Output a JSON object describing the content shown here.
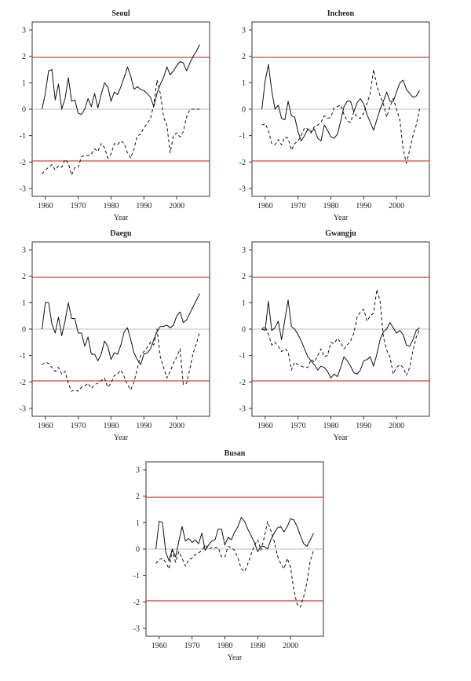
{
  "chart_data": [
    {
      "type": "line",
      "title": "Seoul",
      "xlabel": "Year",
      "ylabel": "",
      "xlim": [
        1956,
        2010
      ],
      "ylim": [
        -3.3,
        3.3
      ],
      "xticks": [
        "1960",
        "1970",
        "1980",
        "1990",
        "2000"
      ],
      "yticks": [
        "-3",
        "-2",
        "-1",
        "0",
        "1",
        "2",
        "3"
      ],
      "reference_lines": [
        1.96,
        -1.96
      ],
      "x": [
        1959,
        1960,
        1961,
        1962,
        1963,
        1964,
        1965,
        1966,
        1967,
        1968,
        1969,
        1970,
        1971,
        1972,
        1973,
        1974,
        1975,
        1976,
        1977,
        1978,
        1979,
        1980,
        1981,
        1982,
        1983,
        1984,
        1985,
        1986,
        1987,
        1988,
        1989,
        1990,
        1991,
        1992,
        1993,
        1994,
        1995,
        1996,
        1997,
        1998,
        1999,
        2000,
        2001,
        2002,
        2003,
        2004,
        2005,
        2006,
        2007
      ],
      "series": [
        {
          "style": "solid",
          "values": [
            0.0,
            0.6,
            1.45,
            1.5,
            0.35,
            0.95,
            0.0,
            0.4,
            1.2,
            0.3,
            0.35,
            -0.15,
            -0.2,
            0.0,
            0.4,
            0.1,
            0.6,
            0.05,
            0.55,
            1.0,
            0.85,
            0.3,
            0.65,
            0.55,
            0.85,
            1.2,
            1.6,
            1.25,
            0.75,
            0.85,
            0.75,
            0.7,
            0.6,
            0.45,
            0.1,
            0.6,
            0.95,
            1.2,
            1.6,
            1.3,
            1.45,
            1.65,
            1.8,
            1.75,
            1.45,
            1.75,
            2.0,
            2.2,
            2.45
          ]
        },
        {
          "style": "dashed",
          "values": [
            -2.45,
            -2.3,
            -2.2,
            -2.1,
            -2.3,
            -2.15,
            -2.2,
            -1.9,
            -2.05,
            -2.5,
            -2.2,
            -2.2,
            -1.8,
            -1.75,
            -1.75,
            -1.7,
            -1.5,
            -1.6,
            -1.3,
            -1.45,
            -1.85,
            -1.7,
            -1.3,
            -1.35,
            -1.2,
            -1.3,
            -1.65,
            -1.85,
            -1.5,
            -1.0,
            -0.95,
            -0.7,
            -0.55,
            -0.35,
            0.15,
            1.1,
            0.6,
            -0.3,
            -0.6,
            -1.65,
            -1.0,
            -0.9,
            -1.05,
            -0.85,
            -0.3,
            0.0,
            0.0,
            0.0,
            0.0
          ]
        }
      ]
    },
    {
      "type": "line",
      "title": "Incheon",
      "xlabel": "Year",
      "ylabel": "",
      "xlim": [
        1956,
        2010
      ],
      "ylim": [
        -3.3,
        3.3
      ],
      "xticks": [
        "1960",
        "1970",
        "1980",
        "1990",
        "2000"
      ],
      "yticks": [
        "-3",
        "-2",
        "-1",
        "0",
        "1",
        "2",
        "3"
      ],
      "reference_lines": [
        1.96,
        -1.96
      ],
      "x": [
        1959,
        1960,
        1961,
        1962,
        1963,
        1964,
        1965,
        1966,
        1967,
        1968,
        1969,
        1970,
        1971,
        1972,
        1973,
        1974,
        1975,
        1976,
        1977,
        1978,
        1979,
        1980,
        1981,
        1982,
        1983,
        1984,
        1985,
        1986,
        1987,
        1988,
        1989,
        1990,
        1991,
        1992,
        1993,
        1994,
        1995,
        1996,
        1997,
        1998,
        1999,
        2000,
        2001,
        2002,
        2003,
        2004,
        2005,
        2006,
        2007
      ],
      "series": [
        {
          "style": "solid",
          "values": [
            0.0,
            1.05,
            1.7,
            0.7,
            0.0,
            0.15,
            -0.35,
            -0.4,
            0.3,
            -0.25,
            -0.3,
            -0.85,
            -1.2,
            -1.0,
            -0.75,
            -0.85,
            -0.75,
            -1.1,
            -1.2,
            -0.6,
            -0.8,
            -1.05,
            -1.1,
            -0.95,
            -0.45,
            0.1,
            0.3,
            0.3,
            -0.1,
            0.25,
            0.4,
            0.2,
            -0.2,
            -0.5,
            -0.8,
            -0.4,
            0.0,
            0.3,
            0.65,
            0.3,
            0.3,
            0.65,
            1.0,
            1.1,
            0.75,
            0.6,
            0.45,
            0.5,
            0.7
          ]
        },
        {
          "style": "dashed",
          "values": [
            -0.6,
            -0.55,
            -0.8,
            -1.3,
            -1.35,
            -1.15,
            -1.35,
            -1.05,
            -1.1,
            -1.55,
            -1.3,
            -1.2,
            -1.0,
            -0.7,
            -0.75,
            -0.9,
            -0.65,
            -0.6,
            -0.5,
            -0.25,
            -0.35,
            -0.3,
            0.05,
            0.1,
            0.15,
            -0.2,
            -0.45,
            -0.5,
            -0.1,
            -0.3,
            -0.35,
            -0.15,
            0.2,
            0.6,
            1.5,
            0.9,
            0.5,
            0.2,
            -0.3,
            0.1,
            0.4,
            0.0,
            -0.4,
            -1.5,
            -2.05,
            -1.55,
            -1.0,
            -0.6,
            0.0
          ]
        }
      ]
    },
    {
      "type": "line",
      "title": "Daegu",
      "xlabel": "Year",
      "ylabel": "",
      "xlim": [
        1956,
        2010
      ],
      "ylim": [
        -3.3,
        3.3
      ],
      "xticks": [
        "1960",
        "1970",
        "1980",
        "1990",
        "2000"
      ],
      "yticks": [
        "-3",
        "-2",
        "-1",
        "0",
        "1",
        "2",
        "3"
      ],
      "reference_lines": [
        1.96,
        -1.96
      ],
      "x": [
        1959,
        1960,
        1961,
        1962,
        1963,
        1964,
        1965,
        1966,
        1967,
        1968,
        1969,
        1970,
        1971,
        1972,
        1973,
        1974,
        1975,
        1976,
        1977,
        1978,
        1979,
        1980,
        1981,
        1982,
        1983,
        1984,
        1985,
        1986,
        1987,
        1988,
        1989,
        1990,
        1991,
        1992,
        1993,
        1994,
        1995,
        1996,
        1997,
        1998,
        1999,
        2000,
        2001,
        2002,
        2003,
        2004,
        2005,
        2006,
        2007
      ],
      "series": [
        {
          "style": "solid",
          "values": [
            0.0,
            1.0,
            1.0,
            0.2,
            -0.15,
            0.45,
            -0.25,
            0.3,
            1.0,
            0.4,
            0.4,
            -0.15,
            -0.15,
            -0.65,
            -0.3,
            -0.95,
            -0.95,
            -1.2,
            -0.95,
            -0.45,
            -0.65,
            -1.15,
            -0.9,
            -0.95,
            -0.6,
            -0.1,
            0.05,
            -0.4,
            -0.9,
            -1.15,
            -1.35,
            -0.95,
            -0.9,
            -0.75,
            -0.4,
            -0.1,
            0.1,
            0.1,
            0.15,
            0.05,
            0.15,
            0.5,
            0.65,
            0.25,
            0.35,
            0.6,
            0.85,
            1.1,
            1.35
          ]
        },
        {
          "style": "dashed",
          "values": [
            -1.35,
            -1.25,
            -1.3,
            -1.45,
            -1.6,
            -1.45,
            -1.7,
            -1.6,
            -2.05,
            -2.35,
            -2.3,
            -2.35,
            -2.2,
            -2.15,
            -2.05,
            -2.25,
            -2.1,
            -2.05,
            -1.95,
            -1.85,
            -2.2,
            -2.05,
            -1.75,
            -1.7,
            -1.55,
            -1.8,
            -2.1,
            -2.3,
            -2.0,
            -1.5,
            -1.0,
            -0.85,
            -0.7,
            -0.5,
            -0.6,
            0.0,
            -1.05,
            -1.45,
            -1.85,
            -1.6,
            -1.3,
            -1.05,
            -0.75,
            -2.1,
            -2.05,
            -1.5,
            -0.9,
            -0.55,
            -0.1
          ]
        }
      ]
    },
    {
      "type": "line",
      "title": "Gwangju",
      "xlabel": "Year",
      "ylabel": "",
      "xlim": [
        1956,
        2010
      ],
      "ylim": [
        -3.3,
        3.3
      ],
      "xticks": [
        "1960",
        "1970",
        "1980",
        "1990",
        "2000"
      ],
      "yticks": [
        "-3",
        "-2",
        "-1",
        "0",
        "1",
        "2",
        "3"
      ],
      "reference_lines": [
        1.96,
        -1.96
      ],
      "x": [
        1959,
        1960,
        1961,
        1962,
        1963,
        1964,
        1965,
        1966,
        1967,
        1968,
        1969,
        1970,
        1971,
        1972,
        1973,
        1974,
        1975,
        1976,
        1977,
        1978,
        1979,
        1980,
        1981,
        1982,
        1983,
        1984,
        1985,
        1986,
        1987,
        1988,
        1989,
        1990,
        1991,
        1992,
        1993,
        1994,
        1995,
        1996,
        1997,
        1998,
        1999,
        2000,
        2001,
        2002,
        2003,
        2004,
        2005,
        2006,
        2007
      ],
      "series": [
        {
          "style": "solid",
          "values": [
            0.0,
            -0.05,
            1.05,
            -0.05,
            0.05,
            0.3,
            -0.4,
            0.35,
            1.1,
            0.1,
            0.0,
            -0.2,
            -0.45,
            -0.75,
            -1.05,
            -1.2,
            -1.35,
            -1.55,
            -1.4,
            -1.45,
            -1.6,
            -1.85,
            -1.7,
            -1.8,
            -1.45,
            -1.05,
            -1.2,
            -1.4,
            -1.65,
            -1.7,
            -1.55,
            -1.2,
            -1.15,
            -1.05,
            -1.4,
            -0.95,
            -0.4,
            -0.1,
            0.0,
            0.25,
            0.05,
            -0.15,
            -0.05,
            -0.2,
            -0.6,
            -0.65,
            -0.4,
            -0.05,
            0.05
          ]
        },
        {
          "style": "dashed",
          "values": [
            0.0,
            0.1,
            -0.2,
            -0.6,
            -0.5,
            -0.65,
            -0.85,
            -0.75,
            -0.85,
            -1.55,
            -1.25,
            -1.35,
            -1.4,
            -1.45,
            -1.45,
            -1.15,
            -1.25,
            -1.0,
            -0.75,
            -1.05,
            -1.0,
            -0.5,
            -0.55,
            -0.35,
            -0.5,
            -0.75,
            -0.6,
            -0.45,
            -0.15,
            0.45,
            0.65,
            0.75,
            0.3,
            0.5,
            0.6,
            1.5,
            1.05,
            -0.3,
            -0.8,
            -1.05,
            -1.7,
            -1.45,
            -1.35,
            -1.45,
            -1.75,
            -1.45,
            -0.8,
            -0.3,
            0.0
          ]
        }
      ]
    },
    {
      "type": "line",
      "title": "Busan",
      "xlabel": "Year",
      "ylabel": "",
      "xlim": [
        1956,
        2010
      ],
      "ylim": [
        -3.3,
        3.3
      ],
      "xticks": [
        "1960",
        "1970",
        "1980",
        "1990",
        "2000"
      ],
      "yticks": [
        "-3",
        "-2",
        "-1",
        "0",
        "1",
        "2",
        "3"
      ],
      "reference_lines": [
        1.96,
        -1.96
      ],
      "x": [
        1959,
        1960,
        1961,
        1962,
        1963,
        1964,
        1965,
        1966,
        1967,
        1968,
        1969,
        1970,
        1971,
        1972,
        1973,
        1974,
        1975,
        1976,
        1977,
        1978,
        1979,
        1980,
        1981,
        1982,
        1983,
        1984,
        1985,
        1986,
        1987,
        1988,
        1989,
        1990,
        1991,
        1992,
        1993,
        1994,
        1995,
        1996,
        1997,
        1998,
        1999,
        2000,
        2001,
        2002,
        2003,
        2004,
        2005,
        2006,
        2007
      ],
      "series": [
        {
          "style": "solid",
          "values": [
            0.0,
            1.05,
            1.0,
            -0.1,
            -0.45,
            0.0,
            -0.3,
            0.3,
            0.85,
            0.3,
            0.4,
            0.25,
            0.35,
            0.2,
            0.6,
            -0.05,
            0.15,
            0.3,
            0.35,
            0.75,
            0.75,
            0.15,
            0.45,
            0.35,
            0.65,
            0.85,
            1.2,
            1.05,
            0.75,
            0.5,
            0.25,
            -0.1,
            0.1,
            0.1,
            0.0,
            0.35,
            0.6,
            0.8,
            0.85,
            0.65,
            0.85,
            1.15,
            1.1,
            0.85,
            0.5,
            0.2,
            0.1,
            0.35,
            0.6
          ]
        },
        {
          "style": "dashed",
          "values": [
            -0.55,
            -0.4,
            -0.35,
            -0.5,
            -0.75,
            -0.05,
            -0.5,
            -0.1,
            -0.35,
            -0.65,
            -0.4,
            -0.35,
            -0.2,
            -0.15,
            -0.05,
            0.15,
            0.0,
            0.05,
            0.05,
            0.05,
            -0.3,
            -0.3,
            0.1,
            0.05,
            -0.05,
            -0.35,
            -0.75,
            -0.85,
            -0.55,
            -0.2,
            0.15,
            0.35,
            -0.05,
            0.45,
            1.05,
            0.7,
            0.3,
            -0.25,
            -0.55,
            -0.75,
            -0.35,
            -0.7,
            -1.55,
            -2.1,
            -2.2,
            -1.8,
            -1.25,
            -0.45,
            -0.05
          ]
        }
      ]
    }
  ],
  "colors": {
    "reference_line": "#d03030",
    "zero_line": "#aaaaaa",
    "series": "#111111",
    "axes": "#333333"
  }
}
